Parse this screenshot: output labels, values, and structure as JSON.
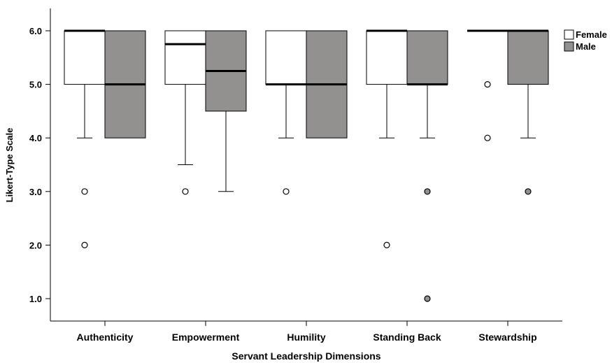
{
  "chart_data": {
    "type": "boxplot",
    "title": "",
    "xlabel": "Servant Leadership Dimensions",
    "ylabel": "Likert-Type Scale",
    "ylim": [
      0.6,
      6.4
    ],
    "yticks": [
      "1.0",
      "2.0",
      "3.0",
      "4.0",
      "5.0",
      "6.0"
    ],
    "ytick_values": [
      1,
      2,
      3,
      4,
      5,
      6
    ],
    "grid": false,
    "legend_position": "top-right",
    "categories": [
      "Authenticity",
      "Empowerment",
      "Humility",
      "Standing Back",
      "Stewardship"
    ],
    "series": [
      {
        "name": "Female",
        "color": "#ffffff",
        "boxes": [
          {
            "whisker_low": 4,
            "q1": 5,
            "median": 6,
            "q3": 6,
            "whisker_high": 6,
            "outliers": [
              3,
              2
            ]
          },
          {
            "whisker_low": 3.5,
            "q1": 5,
            "median": 5.75,
            "q3": 6,
            "whisker_high": 6,
            "outliers": [
              3
            ]
          },
          {
            "whisker_low": 4,
            "q1": 5,
            "median": 5,
            "q3": 6,
            "whisker_high": 6,
            "outliers": [
              3
            ]
          },
          {
            "whisker_low": 4,
            "q1": 5,
            "median": 6,
            "q3": 6,
            "whisker_high": 6,
            "outliers": [
              2
            ]
          },
          {
            "whisker_low": 6,
            "q1": 6,
            "median": 6,
            "q3": 6,
            "whisker_high": 6,
            "outliers": [
              5,
              4
            ]
          }
        ]
      },
      {
        "name": "Male",
        "color": "#939090",
        "boxes": [
          {
            "whisker_low": 4,
            "q1": 4,
            "median": 5,
            "q3": 6,
            "whisker_high": 6,
            "outliers": []
          },
          {
            "whisker_low": 3,
            "q1": 4.5,
            "median": 5.25,
            "q3": 6,
            "whisker_high": 6,
            "outliers": []
          },
          {
            "whisker_low": 4,
            "q1": 4,
            "median": 5,
            "q3": 6,
            "whisker_high": 6,
            "outliers": []
          },
          {
            "whisker_low": 4,
            "q1": 5,
            "median": 5,
            "q3": 6,
            "whisker_high": 6,
            "outliers": [
              3,
              1
            ]
          },
          {
            "whisker_low": 4,
            "q1": 5,
            "median": 6,
            "q3": 6,
            "whisker_high": 6,
            "outliers": [
              3
            ]
          }
        ]
      }
    ]
  }
}
